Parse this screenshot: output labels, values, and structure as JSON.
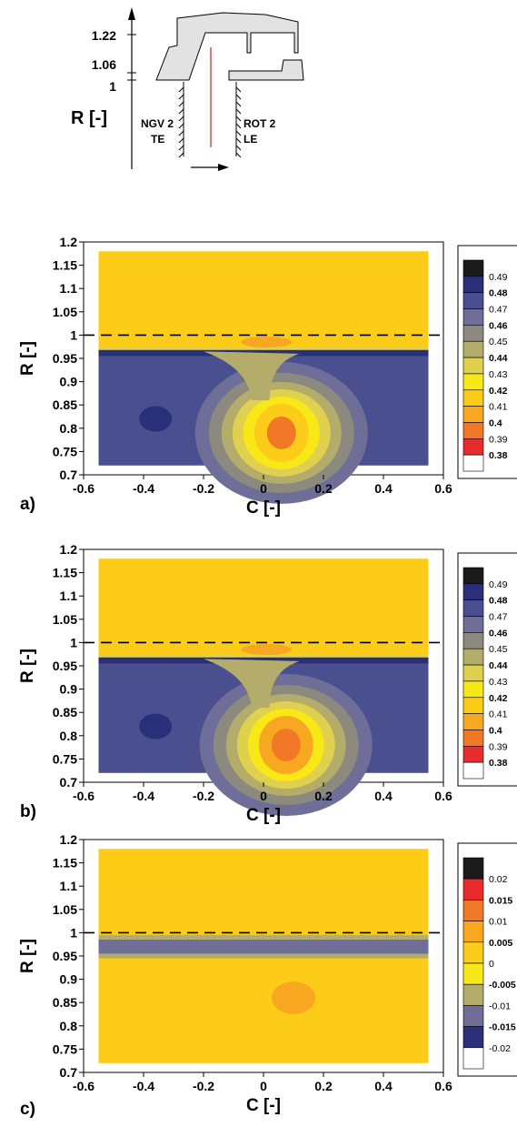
{
  "schematic": {
    "r_ticks": [
      "1.22",
      "1.06",
      "1"
    ],
    "axis_label": "R [-]",
    "left_label_1": "NGV 2",
    "left_label_2": "TE",
    "right_label_1": "ROT 2",
    "right_label_2": "LE"
  },
  "chart_data": [
    {
      "type": "heatmap",
      "panel_label": "a)",
      "xlabel": "C [-]",
      "ylabel": "R [-]",
      "xlim": [
        -0.6,
        0.6
      ],
      "ylim": [
        0.7,
        1.2
      ],
      "x_ticks": [
        "-0.6",
        "-0.4",
        "-0.2",
        "0",
        "0.2",
        "0.4",
        "0.6"
      ],
      "y_ticks": [
        "0.7",
        "0.75",
        "0.8",
        "0.85",
        "0.9",
        "0.95",
        "1",
        "1.05",
        "1.1",
        "1.15",
        "1.2"
      ],
      "reference_lines_R": [
        1.0,
        1.22
      ],
      "data_extent": {
        "C": [
          -0.55,
          0.55
        ],
        "R": [
          0.72,
          1.18
        ]
      },
      "colorbar": {
        "labels": [
          "0.49",
          "0.48",
          "0.47",
          "0.46",
          "0.45",
          "0.44",
          "0.43",
          "0.42",
          "0.41",
          "0.4",
          "0.39",
          "0.38"
        ],
        "colors": [
          "#1a1a1a",
          "#2a2f7a",
          "#4a4f90",
          "#6e6e98",
          "#8c8a7e",
          "#b4ac6a",
          "#e0d050",
          "#f8e818",
          "#fccc18",
          "#f8a820",
          "#f07826",
          "#e82c2c",
          "#ffffff"
        ]
      },
      "bands": [
        {
          "R": [
            0.97,
            1.18
          ],
          "value": 0.41
        },
        {
          "R": [
            0.72,
            0.965
          ],
          "value": 0.47
        }
      ],
      "features": [
        {
          "C": [
            0.0,
            0.12
          ],
          "R": [
            0.72,
            0.86
          ],
          "value": 0.41,
          "note": "core"
        },
        {
          "C": [
            -0.08,
            0.1
          ],
          "R": [
            0.95,
            1.0
          ],
          "value": 0.4
        }
      ]
    },
    {
      "type": "heatmap",
      "panel_label": "b)",
      "xlabel": "C [-]",
      "ylabel": "R [-]",
      "xlim": [
        -0.6,
        0.6
      ],
      "ylim": [
        0.7,
        1.2
      ],
      "x_ticks": [
        "-0.6",
        "-0.4",
        "-0.2",
        "0",
        "0.2",
        "0.4",
        "0.6"
      ],
      "y_ticks": [
        "0.7",
        "0.75",
        "0.8",
        "0.85",
        "0.9",
        "0.95",
        "1",
        "1.05",
        "1.1",
        "1.15",
        "1.2"
      ],
      "reference_lines_R": [
        1.0,
        1.22
      ],
      "data_extent": {
        "C": [
          -0.55,
          0.55
        ],
        "R": [
          0.72,
          1.18
        ]
      },
      "colorbar": {
        "labels": [
          "0.49",
          "0.48",
          "0.47",
          "0.46",
          "0.45",
          "0.44",
          "0.43",
          "0.42",
          "0.41",
          "0.4",
          "0.39",
          "0.38"
        ],
        "colors": [
          "#1a1a1a",
          "#2a2f7a",
          "#4a4f90",
          "#6e6e98",
          "#8c8a7e",
          "#b4ac6a",
          "#e0d050",
          "#f8e818",
          "#fccc18",
          "#f8a820",
          "#f07826",
          "#e82c2c",
          "#ffffff"
        ]
      },
      "bands": [
        {
          "R": [
            0.97,
            1.18
          ],
          "value": 0.41
        },
        {
          "R": [
            0.72,
            0.965
          ],
          "value": 0.47
        }
      ],
      "features": [
        {
          "C": [
            0.0,
            0.15
          ],
          "R": [
            0.72,
            0.84
          ],
          "value": 0.4,
          "note": "core"
        },
        {
          "C": [
            -0.08,
            0.1
          ],
          "R": [
            0.95,
            1.0
          ],
          "value": 0.4
        }
      ]
    },
    {
      "type": "heatmap",
      "panel_label": "c)",
      "xlabel": "C [-]",
      "ylabel": "R [-]",
      "xlim": [
        -0.6,
        0.6
      ],
      "ylim": [
        0.7,
        1.2
      ],
      "x_ticks": [
        "-0.6",
        "-0.4",
        "-0.2",
        "0",
        "0.2",
        "0.4",
        "0.6"
      ],
      "y_ticks": [
        "0.7",
        "0.75",
        "0.8",
        "0.85",
        "0.9",
        "0.95",
        "1",
        "1.05",
        "1.1",
        "1.15",
        "1.2"
      ],
      "reference_lines_R": [
        1.0,
        1.22
      ],
      "data_extent": {
        "C": [
          -0.55,
          0.55
        ],
        "R": [
          0.72,
          1.18
        ]
      },
      "colorbar": {
        "labels": [
          "0.02",
          "0.015",
          "0.01",
          "0.005",
          "0",
          "-0.005",
          "-0.01",
          "-0.015",
          "-0.02"
        ],
        "colors": [
          "#1a1a1a",
          "#e82c2c",
          "#f07826",
          "#f8a820",
          "#fccc18",
          "#f8e818",
          "#b4ac6a",
          "#6e6e98",
          "#2a2f7a",
          "#ffffff"
        ]
      },
      "bands": [
        {
          "R": [
            0.72,
            1.18
          ],
          "value": 0.0
        }
      ],
      "features": [
        {
          "C": [
            -0.55,
            0.55
          ],
          "R": [
            0.95,
            0.99
          ],
          "value": -0.012,
          "note": "band"
        },
        {
          "C": [
            0.0,
            0.2
          ],
          "R": [
            0.78,
            0.9
          ],
          "value": 0.004
        }
      ]
    }
  ]
}
